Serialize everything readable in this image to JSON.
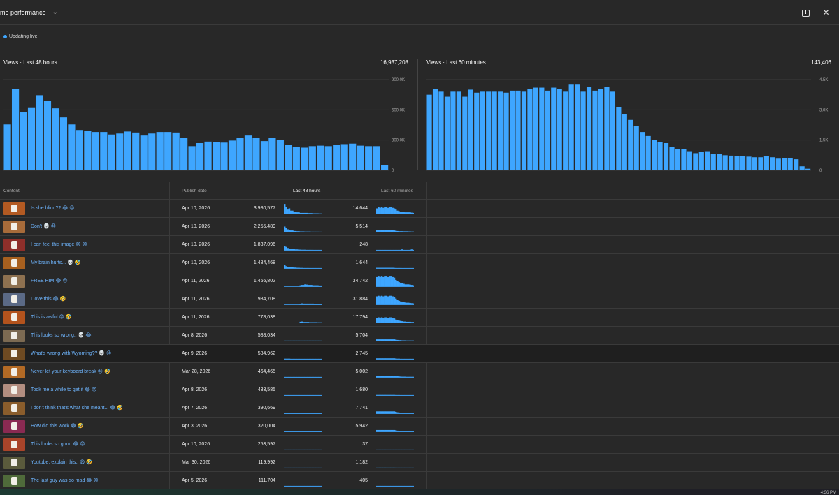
{
  "header": {
    "title": "me performance",
    "expand_icon": "chevron-down-icon",
    "feedback_icon": "feedback-icon",
    "close_icon": "close-icon"
  },
  "status": {
    "live_label": "Updating live",
    "live_color": "#3ea6ff"
  },
  "charts": {
    "left": {
      "label": "Views · Last 48 hours",
      "total": "16,937,208",
      "ticks": [
        "900.0K",
        "600.0K",
        "300.0K",
        "0"
      ]
    },
    "right": {
      "label": "Views · Last 60 minutes",
      "total": "143,406",
      "ticks": [
        "4.5K",
        "3.0K",
        "1.5K",
        "0"
      ]
    }
  },
  "chart_data": [
    {
      "type": "bar",
      "title": "Views · Last 48 hours",
      "ylim": [
        0,
        900000
      ],
      "yticks": [
        "900.0K",
        "600.0K",
        "300.0K",
        "0"
      ],
      "color": "#3ea6ff",
      "values": [
        455000,
        810000,
        580000,
        625000,
        745000,
        690000,
        615000,
        525000,
        455000,
        400000,
        390000,
        380000,
        380000,
        355000,
        365000,
        385000,
        375000,
        345000,
        365000,
        380000,
        380000,
        375000,
        325000,
        240000,
        270000,
        285000,
        280000,
        275000,
        295000,
        325000,
        345000,
        320000,
        290000,
        325000,
        300000,
        255000,
        235000,
        225000,
        240000,
        245000,
        240000,
        250000,
        260000,
        265000,
        245000,
        240000,
        240000,
        55000
      ]
    },
    {
      "type": "bar",
      "title": "Views · Last 60 minutes",
      "ylim": [
        0,
        4500
      ],
      "yticks": [
        "4.5K",
        "3.0K",
        "1.5K",
        "0"
      ],
      "color": "#3ea6ff",
      "values": [
        3750,
        4050,
        3900,
        3650,
        3900,
        3900,
        3650,
        4000,
        3850,
        3900,
        3900,
        3900,
        3900,
        3850,
        3950,
        3950,
        3900,
        4050,
        4100,
        4100,
        3950,
        4100,
        4050,
        3900,
        4250,
        4250,
        3900,
        4150,
        3950,
        4050,
        4150,
        3900,
        3150,
        2800,
        2500,
        2200,
        1900,
        1700,
        1500,
        1400,
        1350,
        1150,
        1050,
        1050,
        950,
        850,
        900,
        950,
        800,
        800,
        750,
        730,
        700,
        700,
        680,
        650,
        650,
        700,
        650,
        580,
        600,
        600,
        550,
        200,
        80
      ]
    }
  ],
  "table": {
    "headers": {
      "content": "Content",
      "publish": "Publish date",
      "last48": "Last 48 hours",
      "last60": "Last 60 minutes"
    },
    "rows": [
      {
        "title": "Is she blind?? 😂 😠",
        "date": "Apr 10, 2026",
        "v48": "3,980,577",
        "v60": "14,644",
        "thumb": "#b35a22",
        "s48": [
          0.9,
          0.6,
          0.4,
          0.5,
          0.3,
          0.3,
          0.2,
          0.2,
          0.15,
          0.15,
          0.1,
          0.1,
          0.1,
          0.1,
          0.1,
          0.08,
          0.08,
          0.08,
          0.06,
          0.06,
          0.06,
          0.06,
          0.05,
          0.05
        ],
        "s60": [
          0.5,
          0.6,
          0.55,
          0.6,
          0.55,
          0.6,
          0.6,
          0.55,
          0.6,
          0.6,
          0.55,
          0.5,
          0.4,
          0.3,
          0.25,
          0.2,
          0.2,
          0.2,
          0.15,
          0.15,
          0.15,
          0.15,
          0.12,
          0.1
        ]
      },
      {
        "title": "Don't 💀 😠",
        "date": "Apr 10, 2026",
        "v48": "2,255,489",
        "v60": "5,514",
        "thumb": "#a76b3a",
        "s48": [
          0.5,
          0.35,
          0.25,
          0.2,
          0.15,
          0.15,
          0.1,
          0.1,
          0.08,
          0.08,
          0.06,
          0.06,
          0.06,
          0.05,
          0.05,
          0.05,
          0.05,
          0.04,
          0.04,
          0.04,
          0.04,
          0.04,
          0.03,
          0.03
        ],
        "s60": [
          0.2,
          0.2,
          0.2,
          0.2,
          0.2,
          0.2,
          0.2,
          0.2,
          0.2,
          0.2,
          0.18,
          0.15,
          0.12,
          0.1,
          0.08,
          0.08,
          0.08,
          0.07,
          0.07,
          0.07,
          0.06,
          0.06,
          0.05,
          0.05
        ]
      },
      {
        "title": "I can feel this image 😠 😠",
        "date": "Apr 10, 2026",
        "v48": "1,837,096",
        "v60": "248",
        "thumb": "#8e2f2a",
        "s48": [
          0.4,
          0.3,
          0.2,
          0.15,
          0.12,
          0.1,
          0.1,
          0.08,
          0.08,
          0.06,
          0.06,
          0.05,
          0.05,
          0.05,
          0.04,
          0.04,
          0.04,
          0.04,
          0.03,
          0.03,
          0.03,
          0.03,
          0.03,
          0.03
        ],
        "s60": [
          0.03,
          0.03,
          0.03,
          0.03,
          0.03,
          0.03,
          0.03,
          0.03,
          0.03,
          0.03,
          0.03,
          0.03,
          0.03,
          0.03,
          0.03,
          0.03,
          0.08,
          0.03,
          0.03,
          0.03,
          0.03,
          0.03,
          0.08,
          0.03
        ]
      },
      {
        "title": "My brain hurts... 💀 🤣",
        "date": "Apr 10, 2026",
        "v48": "1,484,468",
        "v60": "1,644",
        "thumb": "#a8601f",
        "s48": [
          0.3,
          0.2,
          0.15,
          0.12,
          0.1,
          0.1,
          0.08,
          0.08,
          0.06,
          0.06,
          0.05,
          0.05,
          0.04,
          0.04,
          0.04,
          0.04,
          0.03,
          0.03,
          0.03,
          0.03,
          0.03,
          0.03,
          0.03,
          0.03
        ],
        "s60": [
          0.06,
          0.06,
          0.06,
          0.06,
          0.06,
          0.06,
          0.06,
          0.06,
          0.06,
          0.06,
          0.06,
          0.05,
          0.04,
          0.04,
          0.04,
          0.04,
          0.03,
          0.03,
          0.03,
          0.03,
          0.03,
          0.03,
          0.03,
          0.03
        ]
      },
      {
        "title": "FREE HIM 😂 😠",
        "date": "Apr 11, 2026",
        "v48": "1,466,802",
        "v60": "34,742",
        "thumb": "#8e7150",
        "s48": [
          0,
          0,
          0,
          0,
          0,
          0,
          0,
          0,
          0,
          0,
          0.12,
          0.15,
          0.15,
          0.2,
          0.18,
          0.15,
          0.15,
          0.15,
          0.12,
          0.12,
          0.12,
          0.12,
          0.1,
          0.1
        ],
        "s60": [
          0.85,
          0.9,
          0.85,
          0.9,
          0.85,
          0.9,
          0.9,
          0.85,
          0.9,
          0.9,
          0.85,
          0.8,
          0.6,
          0.5,
          0.4,
          0.35,
          0.3,
          0.25,
          0.2,
          0.2,
          0.2,
          0.18,
          0.15,
          0.12
        ]
      },
      {
        "title": "I love this 😂 🤣",
        "date": "Apr 11, 2026",
        "v48": "984,708",
        "v60": "31,884",
        "thumb": "#5b6a86",
        "s48": [
          0,
          0,
          0,
          0,
          0,
          0,
          0,
          0,
          0,
          0,
          0.08,
          0.12,
          0.1,
          0.1,
          0.1,
          0.1,
          0.1,
          0.1,
          0.1,
          0.08,
          0.08,
          0.08,
          0.08,
          0.08
        ],
        "s60": [
          0.75,
          0.8,
          0.75,
          0.8,
          0.75,
          0.8,
          0.8,
          0.75,
          0.8,
          0.8,
          0.75,
          0.7,
          0.55,
          0.45,
          0.35,
          0.3,
          0.25,
          0.22,
          0.2,
          0.18,
          0.18,
          0.16,
          0.14,
          0.12
        ]
      },
      {
        "title": "This is awful 😠 🤣",
        "date": "Apr 11, 2026",
        "v48": "778,038",
        "v60": "17,794",
        "thumb": "#b3531d",
        "s48": [
          0,
          0,
          0,
          0,
          0,
          0,
          0,
          0,
          0,
          0,
          0.1,
          0.12,
          0.08,
          0.08,
          0.08,
          0.08,
          0.06,
          0.06,
          0.06,
          0.06,
          0.06,
          0.05,
          0.05,
          0.05
        ],
        "s60": [
          0.45,
          0.5,
          0.45,
          0.5,
          0.45,
          0.5,
          0.5,
          0.45,
          0.5,
          0.5,
          0.45,
          0.4,
          0.3,
          0.25,
          0.2,
          0.18,
          0.15,
          0.12,
          0.12,
          0.1,
          0.1,
          0.1,
          0.08,
          0.08
        ]
      },
      {
        "title": "This looks so wrong.. 💀 😂",
        "date": "Apr 8, 2026",
        "v48": "588,034",
        "v60": "5,704",
        "thumb": "#7c6a52",
        "s48": [
          0.04,
          0.04,
          0.04,
          0.04,
          0.04,
          0.04,
          0.04,
          0.04,
          0.04,
          0.04,
          0.04,
          0.04,
          0.04,
          0.04,
          0.04,
          0.04,
          0.04,
          0.04,
          0.04,
          0.04,
          0.04,
          0.04,
          0.04,
          0.04
        ],
        "s60": [
          0.15,
          0.15,
          0.15,
          0.15,
          0.15,
          0.15,
          0.15,
          0.15,
          0.15,
          0.15,
          0.15,
          0.15,
          0.12,
          0.1,
          0.08,
          0.08,
          0.06,
          0.06,
          0.06,
          0.05,
          0.05,
          0.05,
          0.05,
          0.05
        ]
      },
      {
        "title": "What's wrong with Wyoming?? 💀 😠",
        "date": "Apr 9, 2026",
        "v48": "584,962",
        "v60": "2,745",
        "thumb": "#6e4a22",
        "s48": [
          0.05,
          0.05,
          0.05,
          0.05,
          0.04,
          0.04,
          0.04,
          0.04,
          0.04,
          0.04,
          0.04,
          0.04,
          0.04,
          0.04,
          0.04,
          0.04,
          0.04,
          0.04,
          0.04,
          0.04,
          0.04,
          0.04,
          0.04,
          0.04
        ],
        "s60": [
          0.08,
          0.08,
          0.08,
          0.08,
          0.08,
          0.08,
          0.08,
          0.08,
          0.08,
          0.08,
          0.08,
          0.08,
          0.06,
          0.05,
          0.05,
          0.04,
          0.04,
          0.04,
          0.04,
          0.04,
          0.04,
          0.04,
          0.04,
          0.04
        ]
      },
      {
        "title": "Never let your keyboard break 😠 🤣",
        "date": "Mar 28, 2026",
        "v48": "464,465",
        "v60": "5,002",
        "thumb": "#b36a25",
        "s48": [
          0.04,
          0.04,
          0.04,
          0.04,
          0.04,
          0.04,
          0.04,
          0.04,
          0.04,
          0.04,
          0.04,
          0.04,
          0.04,
          0.04,
          0.04,
          0.04,
          0.04,
          0.04,
          0.04,
          0.04,
          0.04,
          0.04,
          0.04,
          0.04
        ],
        "s60": [
          0.14,
          0.14,
          0.14,
          0.14,
          0.14,
          0.14,
          0.14,
          0.14,
          0.14,
          0.14,
          0.14,
          0.14,
          0.12,
          0.1,
          0.08,
          0.07,
          0.06,
          0.06,
          0.06,
          0.05,
          0.05,
          0.05,
          0.05,
          0.05
        ]
      },
      {
        "title": "Took me a while to get it 😂 😠",
        "date": "Apr 8, 2026",
        "v48": "433,585",
        "v60": "1,680",
        "thumb": "#b38e80",
        "s48": [
          0.03,
          0.03,
          0.03,
          0.03,
          0.03,
          0.03,
          0.03,
          0.03,
          0.03,
          0.03,
          0.03,
          0.03,
          0.03,
          0.03,
          0.03,
          0.03,
          0.03,
          0.03,
          0.03,
          0.03,
          0.03,
          0.03,
          0.03,
          0.03
        ],
        "s60": [
          0.05,
          0.05,
          0.05,
          0.05,
          0.05,
          0.05,
          0.05,
          0.05,
          0.05,
          0.05,
          0.05,
          0.05,
          0.04,
          0.04,
          0.04,
          0.03,
          0.03,
          0.03,
          0.03,
          0.03,
          0.03,
          0.03,
          0.03,
          0.03
        ]
      },
      {
        "title": "I don't think that's what she meant... 😂 🤣",
        "date": "Apr 7, 2026",
        "v48": "390,669",
        "v60": "7,741",
        "thumb": "#8a5d2c",
        "s48": [
          0.03,
          0.03,
          0.03,
          0.03,
          0.03,
          0.03,
          0.03,
          0.03,
          0.03,
          0.03,
          0.03,
          0.03,
          0.03,
          0.03,
          0.03,
          0.03,
          0.03,
          0.03,
          0.03,
          0.03,
          0.03,
          0.03,
          0.03,
          0.03
        ],
        "s60": [
          0.2,
          0.2,
          0.2,
          0.2,
          0.2,
          0.2,
          0.2,
          0.2,
          0.2,
          0.2,
          0.2,
          0.2,
          0.16,
          0.12,
          0.1,
          0.09,
          0.08,
          0.08,
          0.07,
          0.07,
          0.07,
          0.06,
          0.06,
          0.06
        ]
      },
      {
        "title": "How did this work 😂 🤣",
        "date": "Apr 3, 2026",
        "v48": "320,004",
        "v60": "5,942",
        "thumb": "#8a2a52",
        "s48": [
          0.03,
          0.03,
          0.03,
          0.03,
          0.03,
          0.03,
          0.03,
          0.03,
          0.03,
          0.03,
          0.03,
          0.03,
          0.03,
          0.03,
          0.03,
          0.03,
          0.03,
          0.03,
          0.03,
          0.03,
          0.03,
          0.03,
          0.03,
          0.03
        ],
        "s60": [
          0.16,
          0.16,
          0.16,
          0.16,
          0.16,
          0.16,
          0.16,
          0.16,
          0.16,
          0.16,
          0.16,
          0.16,
          0.13,
          0.1,
          0.08,
          0.07,
          0.06,
          0.06,
          0.06,
          0.05,
          0.05,
          0.05,
          0.05,
          0.05
        ]
      },
      {
        "title": "This looks so good 😂 😠",
        "date": "Apr 10, 2026",
        "v48": "253,597",
        "v60": "37",
        "thumb": "#a9442a",
        "s48": [
          0.03,
          0.03,
          0.03,
          0.03,
          0.03,
          0.03,
          0.03,
          0.03,
          0.03,
          0.03,
          0.03,
          0.03,
          0.03,
          0.03,
          0.03,
          0.03,
          0.03,
          0.03,
          0.03,
          0.03,
          0.03,
          0.03,
          0.03,
          0.03
        ],
        "s60": [
          0.03,
          0.03,
          0.03,
          0.03,
          0.03,
          0.03,
          0.03,
          0.03,
          0.03,
          0.03,
          0.03,
          0.03,
          0.03,
          0.03,
          0.03,
          0.03,
          0.03,
          0.03,
          0.03,
          0.03,
          0.03,
          0.03,
          0.03,
          0.03
        ]
      },
      {
        "title": "Youtube, explain this.. 😩 🤣",
        "date": "Mar 30, 2026",
        "v48": "119,992",
        "v60": "1,182",
        "thumb": "#5a5a3c",
        "s48": [
          0.03,
          0.03,
          0.03,
          0.03,
          0.03,
          0.03,
          0.03,
          0.03,
          0.03,
          0.03,
          0.03,
          0.03,
          0.03,
          0.03,
          0.03,
          0.03,
          0.03,
          0.03,
          0.03,
          0.03,
          0.03,
          0.03,
          0.03,
          0.03
        ],
        "s60": [
          0.04,
          0.04,
          0.04,
          0.04,
          0.04,
          0.04,
          0.04,
          0.04,
          0.04,
          0.04,
          0.04,
          0.04,
          0.03,
          0.03,
          0.03,
          0.03,
          0.03,
          0.03,
          0.03,
          0.03,
          0.03,
          0.03,
          0.03,
          0.03
        ]
      },
      {
        "title": "The last guy was so mad 😂 😠",
        "date": "Apr 5, 2026",
        "v48": "111,704",
        "v60": "405",
        "thumb": "#4f6a3a",
        "s48": [
          0.03,
          0.03,
          0.03,
          0.03,
          0.03,
          0.03,
          0.03,
          0.03,
          0.03,
          0.03,
          0.03,
          0.03,
          0.03,
          0.03,
          0.03,
          0.03,
          0.03,
          0.03,
          0.03,
          0.03,
          0.03,
          0.03,
          0.03,
          0.03
        ],
        "s60": [
          0.03,
          0.03,
          0.03,
          0.03,
          0.03,
          0.03,
          0.03,
          0.03,
          0.03,
          0.03,
          0.03,
          0.03,
          0.03,
          0.03,
          0.03,
          0.03,
          0.03,
          0.03,
          0.03,
          0.03,
          0.03,
          0.03,
          0.03,
          0.03
        ]
      }
    ]
  },
  "taskbar": {
    "time": "4:36 PM"
  }
}
